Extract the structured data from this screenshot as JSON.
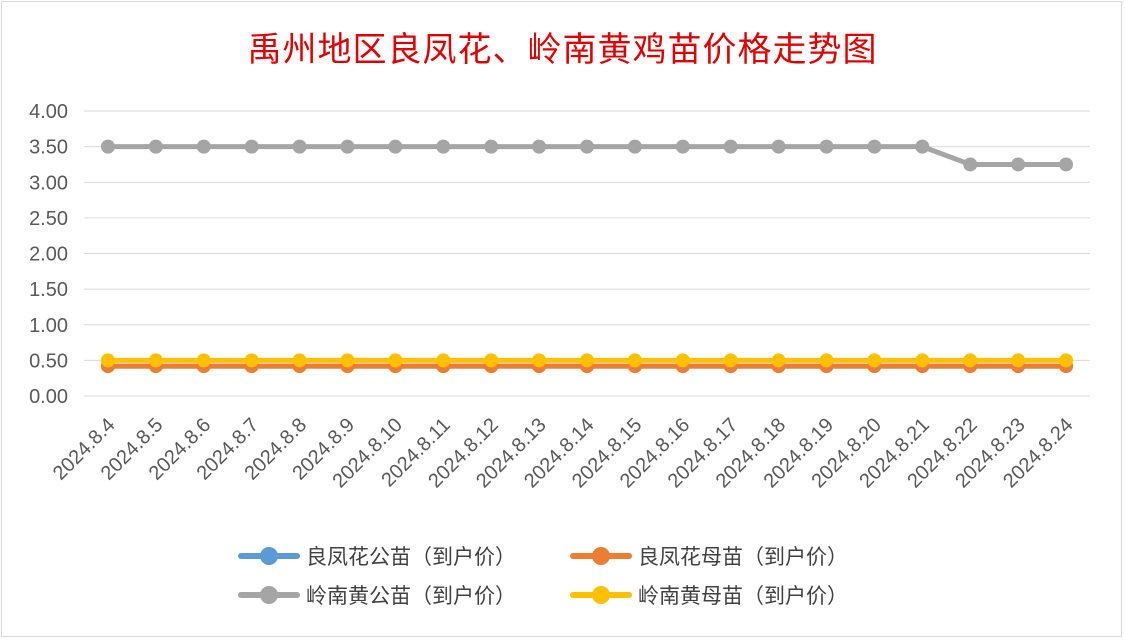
{
  "chart_data": {
    "type": "line",
    "title": "禹州地区良凤花、岭南黄鸡苗价格走势图",
    "categories": [
      "2024.8.4",
      "2024.8.5",
      "2024.8.6",
      "2024.8.7",
      "2024.8.8",
      "2024.8.9",
      "2024.8.10",
      "2024.8.11",
      "2024.8.12",
      "2024.8.13",
      "2024.8.14",
      "2024.8.15",
      "2024.8.16",
      "2024.8.17",
      "2024.8.18",
      "2024.8.19",
      "2024.8.20",
      "2024.8.21",
      "2024.8.22",
      "2024.8.23",
      "2024.8.24"
    ],
    "yticks": [
      "0.00",
      "0.50",
      "1.00",
      "1.50",
      "2.00",
      "2.50",
      "3.00",
      "3.50",
      "4.00"
    ],
    "ylim": [
      0,
      4
    ],
    "grid": true,
    "legend_position": "bottom",
    "series": [
      {
        "name": "良凤花公苗（到户价）",
        "color": "#5b9bd5",
        "values": [
          0.42,
          0.42,
          0.42,
          0.42,
          0.42,
          0.42,
          0.42,
          0.42,
          0.42,
          0.42,
          0.42,
          0.42,
          0.42,
          0.42,
          0.42,
          0.42,
          0.42,
          0.42,
          0.42,
          0.42,
          0.42
        ]
      },
      {
        "name": "良凤花母苗（到户价）",
        "color": "#ed7d31",
        "values": [
          0.42,
          0.42,
          0.42,
          0.42,
          0.42,
          0.42,
          0.42,
          0.42,
          0.42,
          0.42,
          0.42,
          0.42,
          0.42,
          0.42,
          0.42,
          0.42,
          0.42,
          0.42,
          0.42,
          0.42,
          0.42
        ]
      },
      {
        "name": "岭南黄公苗（到户价）",
        "color": "#a5a5a5",
        "values": [
          3.5,
          3.5,
          3.5,
          3.5,
          3.5,
          3.5,
          3.5,
          3.5,
          3.5,
          3.5,
          3.5,
          3.5,
          3.5,
          3.5,
          3.5,
          3.5,
          3.5,
          3.5,
          3.25,
          3.25,
          3.25
        ]
      },
      {
        "name": "岭南黄母苗（到户价）",
        "color": "#ffc000",
        "values": [
          0.5,
          0.5,
          0.5,
          0.5,
          0.5,
          0.5,
          0.5,
          0.5,
          0.5,
          0.5,
          0.5,
          0.5,
          0.5,
          0.5,
          0.5,
          0.5,
          0.5,
          0.5,
          0.5,
          0.5,
          0.5
        ]
      }
    ]
  }
}
